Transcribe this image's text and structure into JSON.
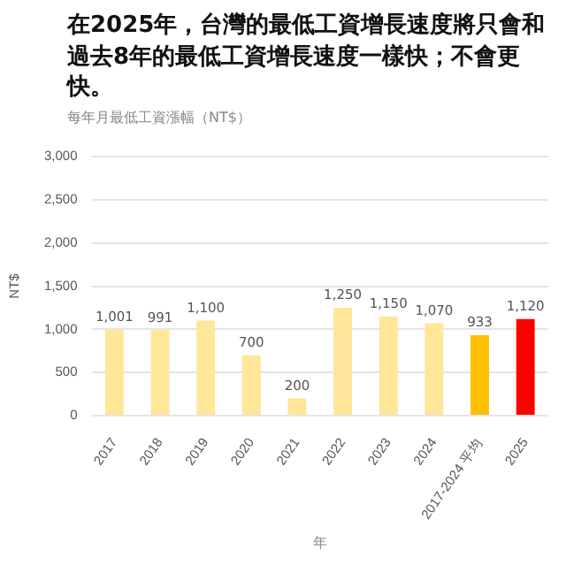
{
  "chart_data": {
    "type": "bar",
    "title": "在2025年，台灣的最低工資增長速度將只會和過去8年的最低工資增長速度一樣快；不會更快。",
    "subtitle": "每年月最低工資漲幅（NT$）",
    "xlabel": "年",
    "ylabel": "NT$",
    "categories": [
      "2017",
      "2018",
      "2019",
      "2020",
      "2021",
      "2022",
      "2023",
      "2024",
      "2017-2024 平均",
      "2025"
    ],
    "values": [
      1001,
      991,
      1100,
      700,
      200,
      1250,
      1150,
      1070,
      933,
      1120
    ],
    "value_labels": [
      "1,001",
      "991",
      "1,100",
      "700",
      "200",
      "1,250",
      "1,150",
      "1,070",
      "933",
      "1,120"
    ],
    "colors": [
      "#ffe699",
      "#ffe699",
      "#ffe699",
      "#ffe699",
      "#ffe699",
      "#ffe699",
      "#ffe699",
      "#ffe699",
      "#ffc000",
      "#ff0000"
    ],
    "ylim": [
      0,
      3000
    ],
    "yticks": [
      0,
      500,
      {
        "value": 1000,
        "label": "1,000"
      },
      {
        "value": 1500,
        "label": "1,500"
      },
      {
        "value": 2000,
        "label": "2,000"
      },
      {
        "value": 2500,
        "label": "2,500"
      },
      {
        "value": 3000,
        "label": "3,000"
      }
    ],
    "grid": "y",
    "legend": false
  }
}
